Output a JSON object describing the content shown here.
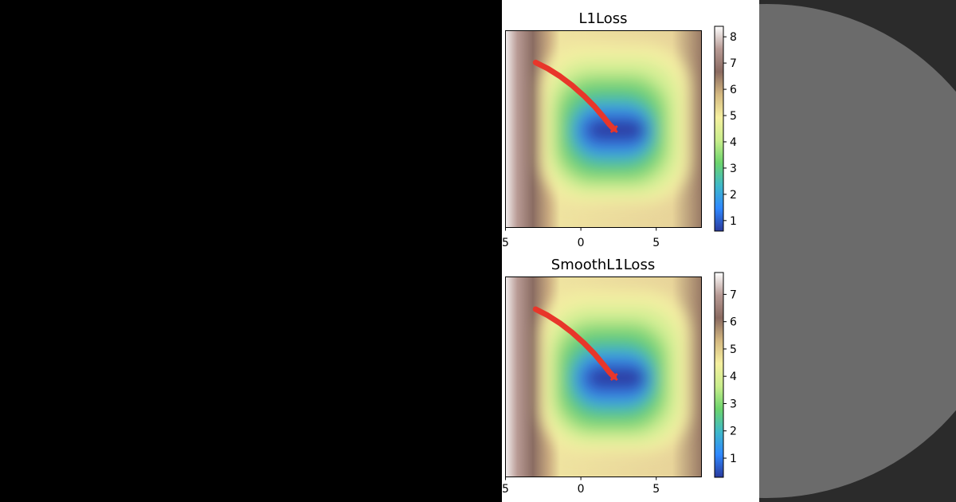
{
  "chart_data": [
    {
      "type": "heatmap",
      "title": "L1Loss",
      "xticks": [
        "5",
        "0",
        "5"
      ],
      "xtick_values": [
        -5,
        0,
        5
      ],
      "xlim": [
        -5,
        8
      ],
      "ylim": [
        -6,
        7
      ],
      "colorbar": {
        "ticks": [
          "1",
          "2",
          "3",
          "4",
          "5",
          "6",
          "7",
          "8"
        ],
        "tick_values": [
          1,
          2,
          3,
          4,
          5,
          6,
          7,
          8
        ],
        "range": [
          0.6,
          8.4
        ],
        "colors": [
          "#2a3a9e",
          "#2f88ff",
          "#3fb9c9",
          "#6cd46c",
          "#c9ee8c",
          "#f6f0a0",
          "#d4b880",
          "#8a6a60",
          "#b79a94",
          "#ffffff"
        ]
      },
      "minimum": [
        2.2,
        0.5
      ],
      "trajectory": {
        "color": "#e8362a",
        "x": [
          -3.0,
          -2.2,
          -1.4,
          -0.6,
          0.2,
          0.9,
          1.5,
          1.9,
          2.2
        ],
        "y": [
          4.9,
          4.5,
          4.0,
          3.4,
          2.7,
          2.0,
          1.3,
          0.8,
          0.5
        ]
      }
    },
    {
      "type": "heatmap",
      "title": "SmoothL1Loss",
      "xticks": [
        "5",
        "0",
        "5"
      ],
      "xtick_values": [
        -5,
        0,
        5
      ],
      "xlim": [
        -5,
        8
      ],
      "ylim": [
        -6,
        7
      ],
      "colorbar": {
        "ticks": [
          "1",
          "2",
          "3",
          "4",
          "5",
          "6",
          "7"
        ],
        "tick_values": [
          1,
          2,
          3,
          4,
          5,
          6,
          7
        ],
        "range": [
          0.3,
          7.8
        ],
        "colors": [
          "#2a3a9e",
          "#2f88ff",
          "#3fb9c9",
          "#6cd46c",
          "#c9ee8c",
          "#f6f0a0",
          "#d4b880",
          "#8a6a60",
          "#b79a94",
          "#ffffff"
        ]
      },
      "minimum": [
        2.2,
        0.5
      ],
      "trajectory": {
        "color": "#e8362a",
        "x": [
          -3.0,
          -2.2,
          -1.4,
          -0.6,
          0.2,
          0.9,
          1.5,
          1.9,
          2.2
        ],
        "y": [
          4.9,
          4.5,
          4.0,
          3.4,
          2.7,
          2.0,
          1.3,
          0.8,
          0.5
        ]
      }
    }
  ]
}
